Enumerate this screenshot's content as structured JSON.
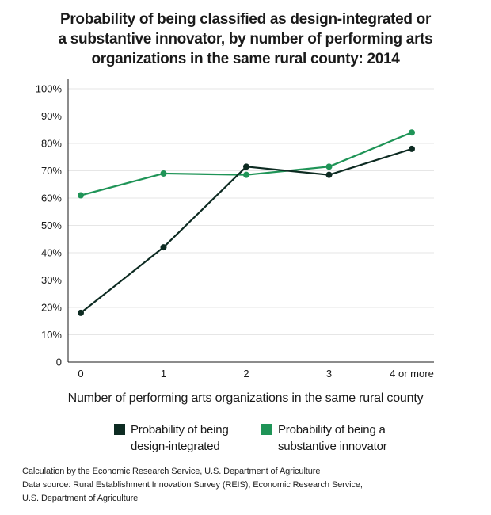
{
  "chart_data": {
    "type": "line",
    "title_lines": [
      "Probability of being classified as design-integrated or",
      "a substantive innovator, by number of performing arts",
      "organizations in the same rural county: 2014"
    ],
    "xlabel": "Number of performing arts organizations in the same rural county",
    "ylabel": "",
    "categories": [
      "0",
      "1",
      "2",
      "3",
      "4 or more"
    ],
    "y_ticks": [
      "0",
      "10%",
      "20%",
      "30%",
      "40%",
      "50%",
      "60%",
      "70%",
      "80%",
      "90%",
      "100%"
    ],
    "ylim": [
      0,
      100
    ],
    "grid": true,
    "series": [
      {
        "name": "Probability of being design-integrated",
        "legend_lines": [
          "Probability of being",
          "design-integrated"
        ],
        "color": "#0d2b22",
        "values": [
          18,
          42,
          71.5,
          68.5,
          78
        ]
      },
      {
        "name": "Probability of being a substantive innovator",
        "legend_lines": [
          "Probability of being a",
          "substantive innovator"
        ],
        "color": "#1f9457",
        "values": [
          61,
          69,
          68.5,
          71.5,
          84
        ]
      }
    ],
    "source_lines": [
      "Calculation by the Economic Research Service, U.S. Department of Agriculture",
      "Data source: Rural Establishment Innovation Survey (REIS), Economic Research Service,",
      "U.S. Department of Agriculture"
    ]
  }
}
